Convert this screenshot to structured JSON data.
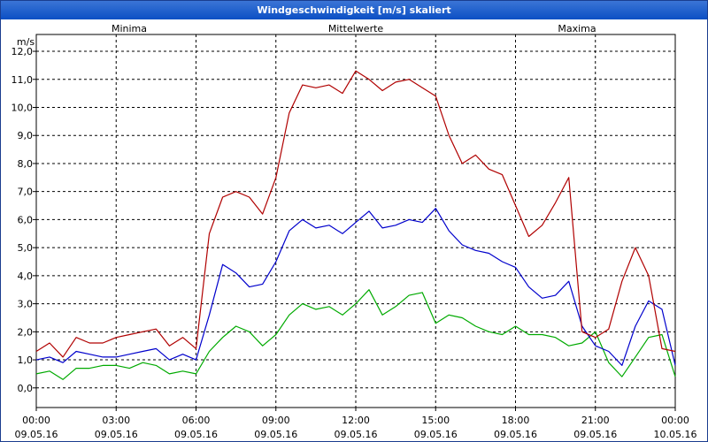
{
  "window": {
    "title": "Windgeschwindigkeit [m/s] skaliert"
  },
  "chart_data": {
    "type": "line",
    "title": "Windgeschwindigkeit [m/s] skaliert",
    "ylabel": "m/s",
    "ylim": [
      -0.7,
      12.6
    ],
    "grid": true,
    "yticks": [
      "0,0",
      "1,0",
      "2,0",
      "3,0",
      "4,0",
      "5,0",
      "6,0",
      "7,0",
      "8,0",
      "9,0",
      "10,0",
      "11,0",
      "12,0"
    ],
    "xticks": [
      {
        "time": "00:00",
        "date": "09.05.16"
      },
      {
        "time": "03:00",
        "date": "09.05.16"
      },
      {
        "time": "06:00",
        "date": "09.05.16"
      },
      {
        "time": "09:00",
        "date": "09.05.16"
      },
      {
        "time": "12:00",
        "date": "09.05.16"
      },
      {
        "time": "15:00",
        "date": "09.05.16"
      },
      {
        "time": "18:00",
        "date": "09.05.16"
      },
      {
        "time": "21:00",
        "date": "09.05.16"
      },
      {
        "time": "00:00",
        "date": "10.05.16"
      }
    ],
    "x_hours": [
      0,
      0.5,
      1,
      1.5,
      2,
      2.5,
      3,
      3.5,
      4,
      4.5,
      5,
      5.5,
      6,
      6.5,
      7,
      7.5,
      8,
      8.5,
      9,
      9.5,
      10,
      10.5,
      11,
      11.5,
      12,
      12.5,
      13,
      13.5,
      14,
      14.5,
      15,
      15.5,
      16,
      16.5,
      17,
      17.5,
      18,
      18.5,
      19,
      19.5,
      20,
      20.5,
      21,
      21.5,
      22,
      22.5,
      23,
      23.5,
      24
    ],
    "series": [
      {
        "name": "Minima",
        "color": "#00aa00",
        "values": [
          0.5,
          0.6,
          0.3,
          0.7,
          0.7,
          0.8,
          0.8,
          0.7,
          0.9,
          0.8,
          0.5,
          0.6,
          0.5,
          1.3,
          1.8,
          2.2,
          2.0,
          1.5,
          1.9,
          2.6,
          3.0,
          2.8,
          2.9,
          2.6,
          3.0,
          3.5,
          2.6,
          2.9,
          3.3,
          3.4,
          2.3,
          2.6,
          2.5,
          2.2,
          2.0,
          1.9,
          2.2,
          1.9,
          1.9,
          1.8,
          1.5,
          1.6,
          2.0,
          0.9,
          0.4,
          1.1,
          1.8,
          1.9,
          0.4
        ]
      },
      {
        "name": "Mittelwerte",
        "color": "#0000cc",
        "values": [
          1.0,
          1.1,
          0.9,
          1.3,
          1.2,
          1.1,
          1.1,
          1.2,
          1.3,
          1.4,
          1.0,
          1.2,
          1.0,
          2.6,
          4.4,
          4.1,
          3.6,
          3.7,
          4.5,
          5.6,
          6.0,
          5.7,
          5.8,
          5.5,
          5.9,
          6.3,
          5.7,
          5.8,
          6.0,
          5.9,
          6.4,
          5.6,
          5.1,
          4.9,
          4.8,
          4.5,
          4.3,
          3.6,
          3.2,
          3.3,
          3.8,
          2.2,
          1.5,
          1.3,
          0.8,
          2.2,
          3.1,
          2.8,
          0.8
        ]
      },
      {
        "name": "Maxima",
        "color": "#b00000",
        "values": [
          1.3,
          1.6,
          1.1,
          1.8,
          1.6,
          1.6,
          1.8,
          1.9,
          2.0,
          2.1,
          1.5,
          1.8,
          1.4,
          5.5,
          6.8,
          7.0,
          6.8,
          6.2,
          7.5,
          9.8,
          10.8,
          10.7,
          10.8,
          10.5,
          11.3,
          11.0,
          10.6,
          10.9,
          11.0,
          10.7,
          10.4,
          9.0,
          8.0,
          8.3,
          7.8,
          7.6,
          6.5,
          5.4,
          5.8,
          6.6,
          7.5,
          2.0,
          1.8,
          2.1,
          3.8,
          5.0,
          4.0,
          1.4,
          1.3
        ]
      }
    ]
  }
}
